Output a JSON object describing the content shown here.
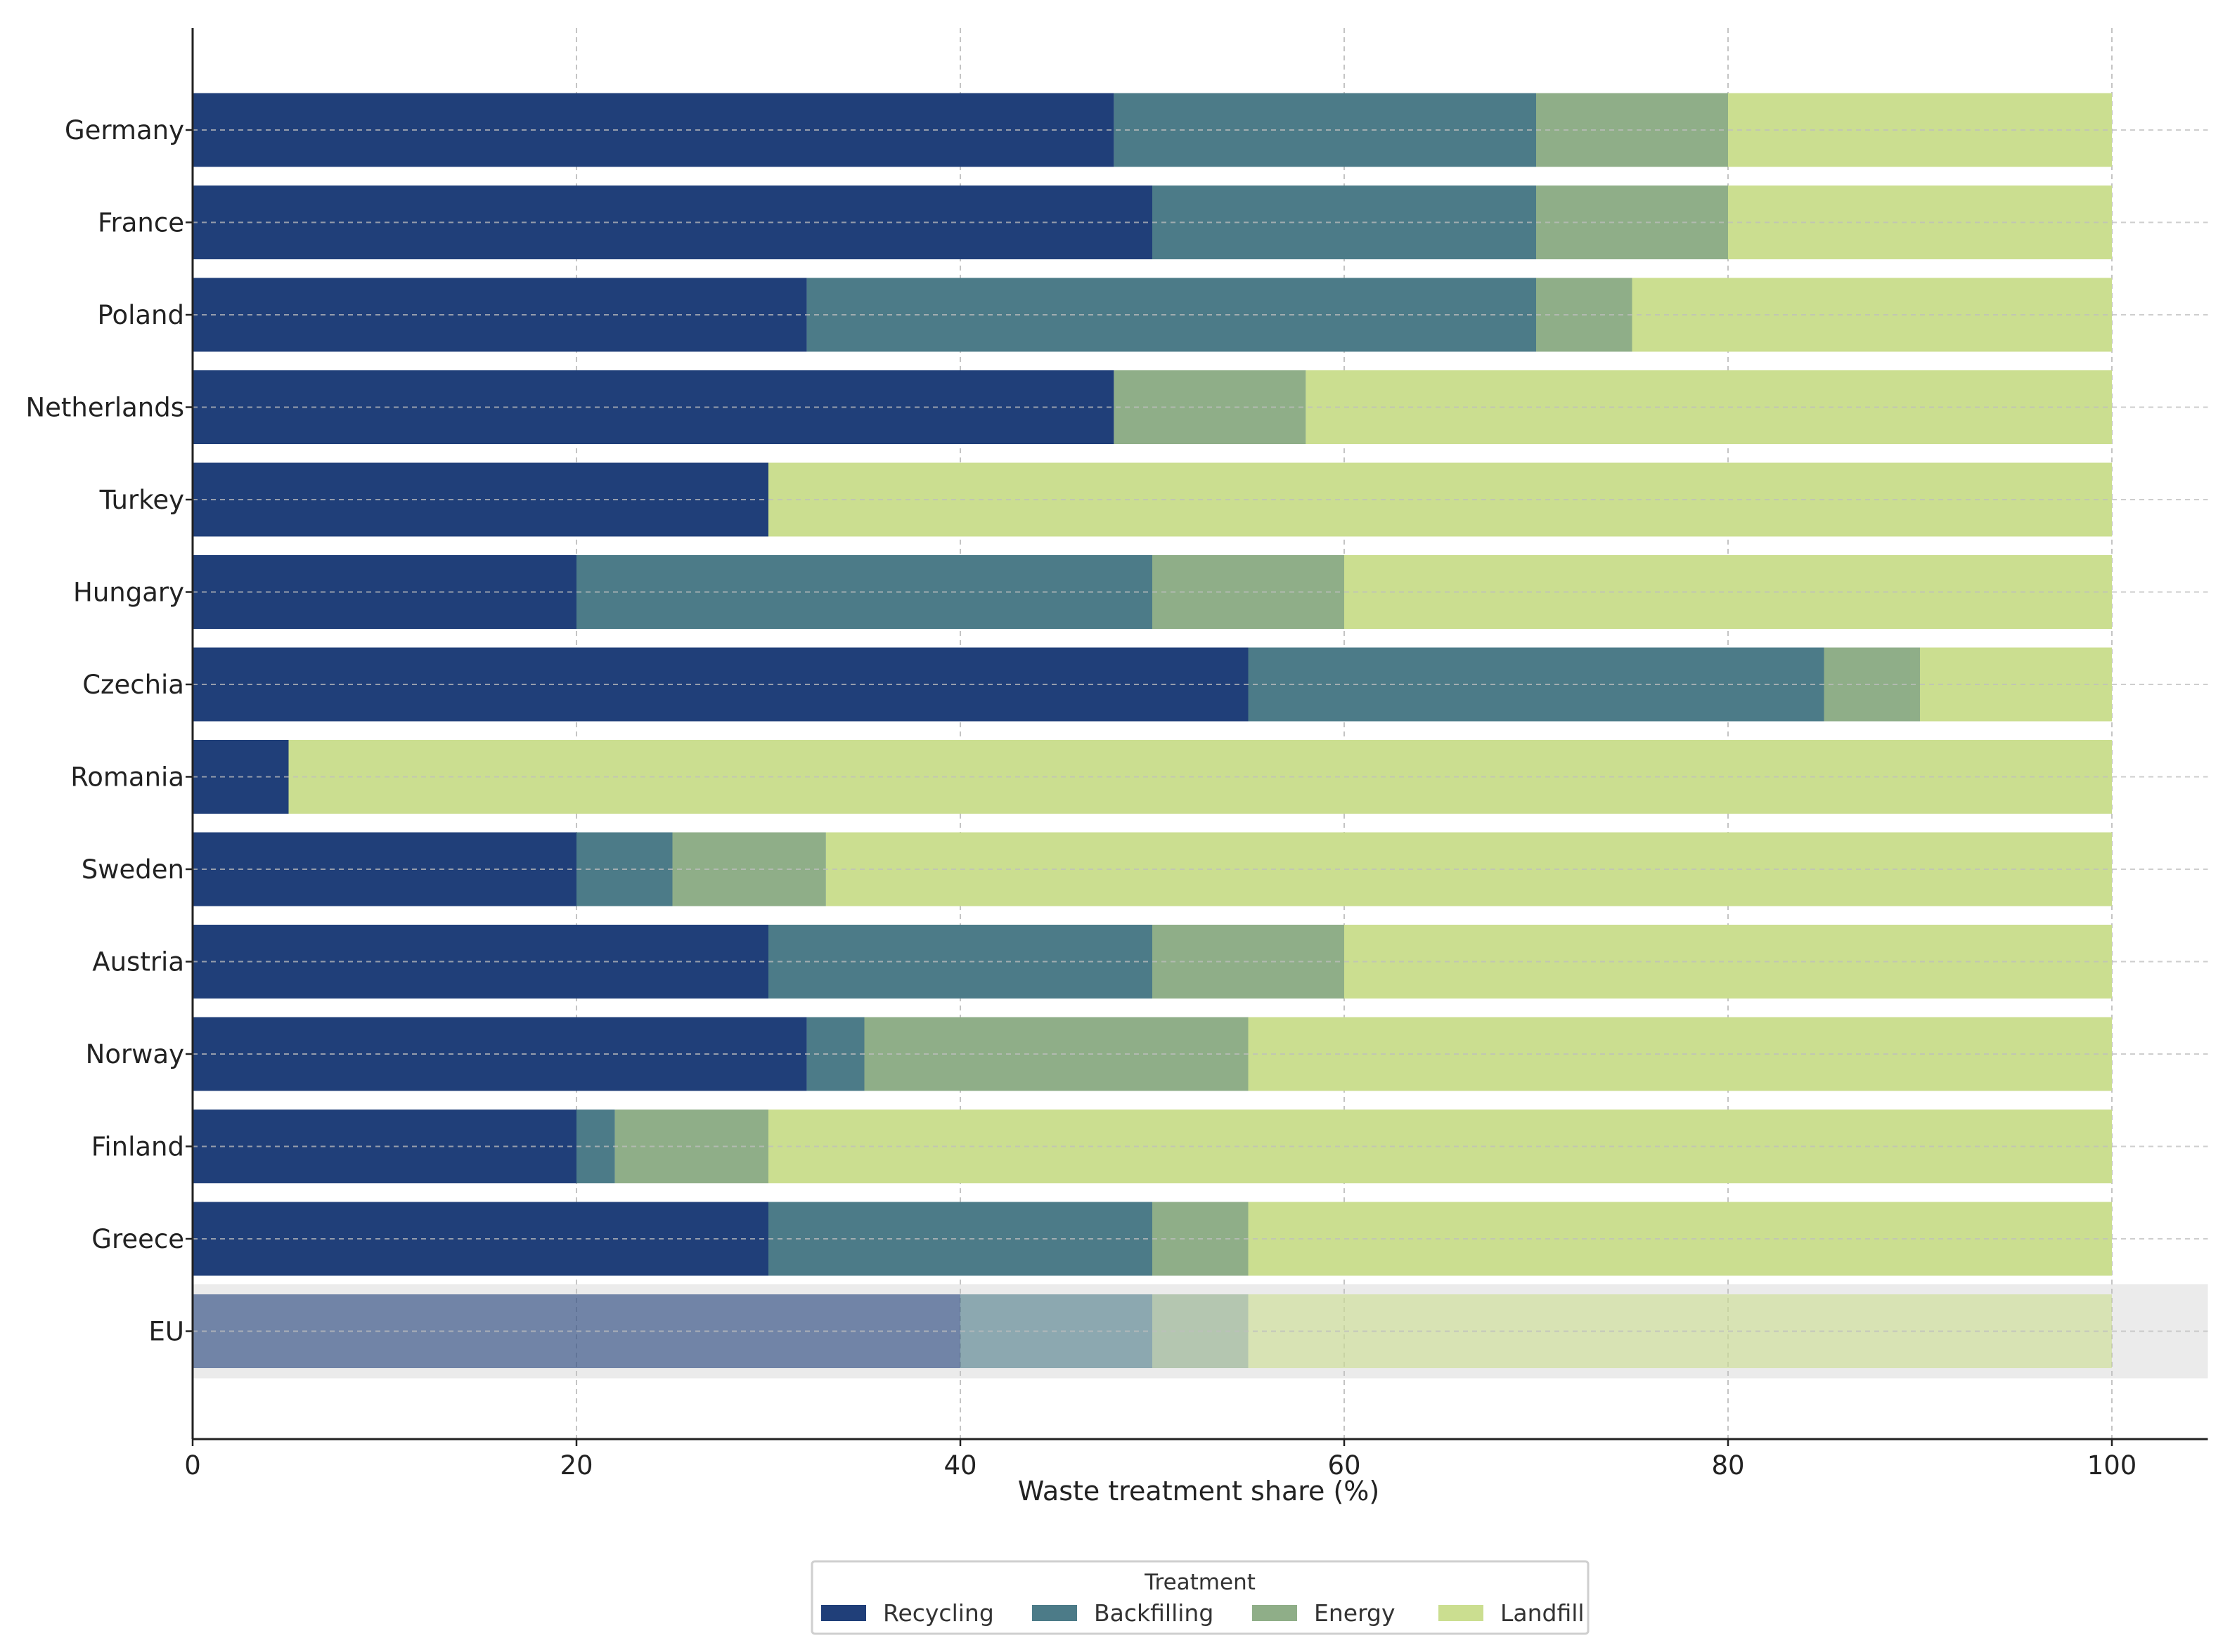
{
  "chart_data": {
    "type": "bar",
    "orientation": "horizontal",
    "stacked": true,
    "title": "",
    "xlabel": "Waste treatment share (%)",
    "ylabel": "",
    "xlim": [
      0,
      105
    ],
    "xticks": [
      0,
      20,
      40,
      60,
      80,
      100
    ],
    "xtick_labels": [
      "0",
      "20",
      "40",
      "60",
      "80",
      "100"
    ],
    "grid": true,
    "categories": [
      "Germany",
      "France",
      "Poland",
      "Netherlands",
      "Turkey",
      "Hungary",
      "Czechia",
      "Romania",
      "Sweden",
      "Austria",
      "Norway",
      "Finland",
      "Greece",
      "EU"
    ],
    "highlighted_category": "EU",
    "series": [
      {
        "name": "Recycling",
        "color": "#203f79",
        "values": [
          48,
          50,
          32,
          48,
          30,
          20,
          55,
          5,
          20,
          30,
          32,
          20,
          30,
          40
        ]
      },
      {
        "name": "Backfilling",
        "color": "#4c7b88",
        "values": [
          22,
          20,
          38,
          0,
          0,
          30,
          30,
          0,
          5,
          20,
          3,
          2,
          20,
          10
        ]
      },
      {
        "name": "Energy",
        "color": "#8fae88",
        "values": [
          10,
          10,
          5,
          10,
          0,
          10,
          5,
          0,
          8,
          10,
          20,
          8,
          5,
          5
        ]
      },
      {
        "name": "Landfill",
        "color": "#cbde90",
        "values": [
          20,
          20,
          25,
          42,
          70,
          40,
          10,
          95,
          67,
          40,
          45,
          70,
          45,
          45
        ]
      }
    ],
    "legend": {
      "title": "Treatment",
      "placement": "bottom-center",
      "entries": [
        "Recycling",
        "Backfilling",
        "Energy",
        "Landfill"
      ]
    }
  }
}
